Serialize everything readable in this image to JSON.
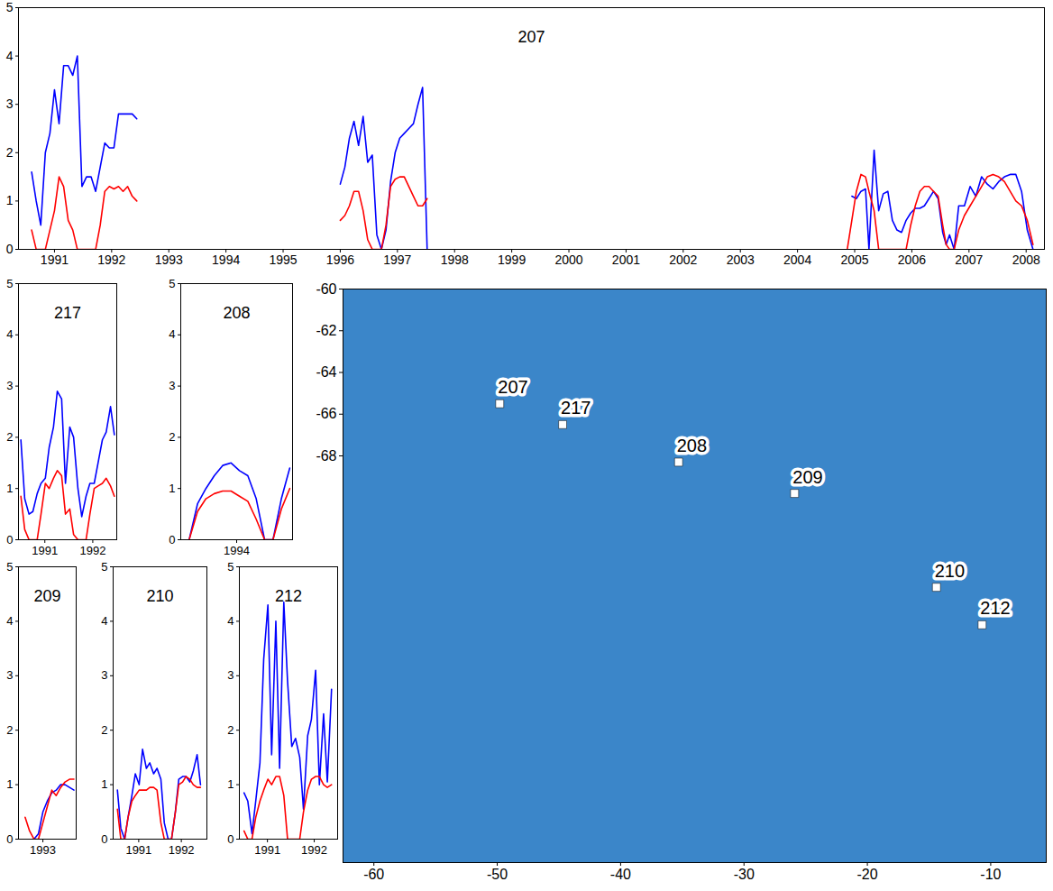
{
  "chart_data": [
    {
      "type": "line",
      "title": "207",
      "x": [
        1990.6,
        1990.68,
        1990.76,
        1990.84,
        1990.92,
        1991.0,
        1991.08,
        1991.16,
        1991.24,
        1991.32,
        1991.4,
        1991.48,
        1991.56,
        1991.64,
        1991.72,
        1991.8,
        1991.88,
        1991.96,
        1992.04,
        1992.12,
        1992.2,
        1992.28,
        1992.36,
        1992.44,
        1994.0,
        1996.0,
        1996.08,
        1996.16,
        1996.24,
        1996.32,
        1996.4,
        1996.48,
        1996.56,
        1996.64,
        1996.72,
        1996.8,
        1996.88,
        1996.96,
        1997.04,
        1997.12,
        1997.2,
        1997.28,
        1997.36,
        1997.44,
        1997.52,
        2001.0,
        2004.87,
        2004.95,
        2005.03,
        2005.11,
        2005.19,
        2005.25,
        2005.34,
        2005.42,
        2005.5,
        2005.58,
        2005.66,
        2005.74,
        2005.82,
        2005.9,
        2005.98,
        2006.06,
        2006.14,
        2006.22,
        2006.3,
        2006.38,
        2006.46,
        2006.54,
        2006.6,
        2006.66,
        2006.74,
        2006.82,
        2006.92,
        2007.02,
        2007.12,
        2007.22,
        2007.32,
        2007.42,
        2007.52,
        2007.62,
        2007.72,
        2007.82,
        2007.92,
        2008.02,
        2008.12
      ],
      "series": [
        {
          "color": "#0000ff",
          "values": [
            1.6,
            1.0,
            0.5,
            2.0,
            2.4,
            3.3,
            2.6,
            3.8,
            3.8,
            3.6,
            4.0,
            1.3,
            1.5,
            1.5,
            1.2,
            1.7,
            2.2,
            2.1,
            2.1,
            2.8,
            2.8,
            2.8,
            2.8,
            2.7,
            null,
            1.35,
            1.7,
            2.3,
            2.65,
            2.15,
            2.75,
            1.8,
            1.95,
            0.3,
            0.0,
            0.4,
            1.4,
            2.0,
            2.3,
            2.4,
            2.5,
            2.6,
            3.0,
            3.35,
            0.0,
            null,
            null,
            1.1,
            1.05,
            1.2,
            1.25,
            0.0,
            2.05,
            0.8,
            1.15,
            1.2,
            0.6,
            0.4,
            0.35,
            0.6,
            0.75,
            0.85,
            0.85,
            0.9,
            1.05,
            1.2,
            1.05,
            0.35,
            0.1,
            0.3,
            0.0,
            0.9,
            0.9,
            1.3,
            1.1,
            1.5,
            1.35,
            1.25,
            1.4,
            1.5,
            1.55,
            1.55,
            1.2,
            0.4,
            0.0
          ]
        },
        {
          "color": "#ff0000",
          "values": [
            0.4,
            0.0,
            0.0,
            0.0,
            0.4,
            0.8,
            1.5,
            1.3,
            0.6,
            0.4,
            0.0,
            0.0,
            0.0,
            0.0,
            0.0,
            0.5,
            1.2,
            1.3,
            1.25,
            1.3,
            1.2,
            1.3,
            1.1,
            1.0,
            null,
            0.6,
            0.7,
            0.9,
            1.2,
            1.2,
            0.8,
            0.2,
            0.0,
            0.0,
            0.0,
            0.5,
            1.3,
            1.45,
            1.5,
            1.5,
            1.3,
            1.1,
            0.9,
            0.9,
            1.05,
            null,
            0.0,
            0.6,
            1.2,
            1.55,
            1.5,
            1.2,
            0.8,
            0.0,
            0.0,
            0.0,
            0.0,
            0.0,
            0.0,
            0.0,
            0.5,
            0.9,
            1.2,
            1.3,
            1.3,
            1.2,
            1.1,
            0.5,
            0.1,
            0.0,
            0.0,
            0.4,
            0.7,
            0.9,
            1.1,
            1.3,
            1.5,
            1.55,
            1.5,
            1.4,
            1.2,
            1.0,
            0.9,
            0.6,
            0.1
          ]
        }
      ],
      "xlim": [
        1990.37,
        2008.32
      ],
      "xticks": [
        1991,
        1992,
        1993,
        1994,
        1995,
        1996,
        1997,
        1998,
        1999,
        2000,
        2001,
        2002,
        2003,
        2004,
        2005,
        2006,
        2007,
        2008
      ],
      "ylim": [
        0,
        5
      ],
      "yticks": [
        0,
        1,
        2,
        3,
        4,
        5
      ]
    },
    {
      "type": "line",
      "title": "217",
      "x": [
        1990.5,
        1990.58,
        1990.67,
        1990.75,
        1990.84,
        1990.92,
        1991.01,
        1991.09,
        1991.18,
        1991.26,
        1991.35,
        1991.43,
        1991.52,
        1991.6,
        1991.69,
        1991.77,
        1991.86,
        1991.94,
        1992.03,
        1992.11,
        1992.2,
        1992.28,
        1992.37,
        1992.45
      ],
      "series": [
        {
          "color": "#0000ff",
          "values": [
            1.95,
            0.8,
            0.5,
            0.55,
            0.9,
            1.1,
            1.2,
            1.8,
            2.2,
            2.9,
            2.75,
            1.1,
            2.2,
            2.0,
            1.0,
            0.45,
            0.85,
            1.1,
            1.1,
            1.5,
            1.95,
            2.1,
            2.6,
            2.05
          ]
        },
        {
          "color": "#ff0000",
          "values": [
            0.85,
            0.2,
            0.0,
            0.0,
            0.0,
            0.5,
            1.1,
            1.0,
            1.2,
            1.35,
            1.25,
            0.5,
            0.6,
            0.1,
            0.0,
            0.0,
            0.0,
            0.5,
            1.0,
            1.05,
            1.1,
            1.2,
            1.05,
            0.85
          ]
        }
      ],
      "xlim": [
        1990.45,
        1992.5
      ],
      "xticks": [
        1991,
        1992
      ],
      "ylim": [
        0,
        5
      ],
      "yticks": [
        0,
        1,
        2,
        3,
        4,
        5
      ]
    },
    {
      "type": "line",
      "title": "208",
      "x": [
        1993.15,
        1993.3,
        1993.45,
        1993.6,
        1993.75,
        1993.9,
        1994.05,
        1994.2,
        1994.35,
        1994.5,
        1994.65,
        1994.8,
        1994.95
      ],
      "series": [
        {
          "color": "#0000ff",
          "values": [
            0.0,
            0.7,
            1.0,
            1.25,
            1.45,
            1.5,
            1.35,
            1.25,
            0.8,
            0.0,
            0.0,
            0.8,
            1.4
          ]
        },
        {
          "color": "#ff0000",
          "values": [
            0.0,
            0.55,
            0.8,
            0.9,
            0.95,
            0.95,
            0.85,
            0.75,
            0.4,
            0.0,
            0.0,
            0.6,
            1.0
          ]
        }
      ],
      "xlim": [
        1993.0,
        1995.0
      ],
      "xticks": [
        1994
      ],
      "ylim": [
        0,
        5
      ],
      "yticks": [
        0,
        1,
        2,
        3,
        4,
        5
      ]
    },
    {
      "type": "line",
      "title": "209",
      "x": [
        1992.6,
        1992.7,
        1992.8,
        1992.9,
        1993.0,
        1993.1,
        1993.2,
        1993.3,
        1993.4,
        1993.5,
        1993.6,
        1993.7
      ],
      "series": [
        {
          "color": "#0000ff",
          "values": [
            null,
            null,
            0.0,
            0.1,
            0.5,
            0.7,
            0.85,
            0.9,
            1.0,
            1.0,
            0.95,
            0.9
          ]
        },
        {
          "color": "#ff0000",
          "values": [
            0.4,
            0.15,
            0.0,
            0.0,
            0.3,
            0.6,
            0.9,
            0.8,
            0.95,
            1.05,
            1.1,
            1.1
          ]
        }
      ],
      "xlim": [
        1992.45,
        1993.75
      ],
      "xticks": [
        1993
      ],
      "ylim": [
        0,
        5
      ],
      "yticks": [
        0,
        1,
        2,
        3,
        4,
        5
      ]
    },
    {
      "type": "line",
      "title": "210",
      "x": [
        1990.5,
        1990.58,
        1990.67,
        1990.75,
        1990.84,
        1990.92,
        1991.01,
        1991.09,
        1991.18,
        1991.26,
        1991.35,
        1991.43,
        1991.52,
        1991.6,
        1991.69,
        1991.77,
        1991.86,
        1991.94,
        1992.03,
        1992.11,
        1992.2,
        1992.28,
        1992.37,
        1992.45
      ],
      "series": [
        {
          "color": "#0000ff",
          "values": [
            0.9,
            0.2,
            0.0,
            0.4,
            0.8,
            1.2,
            1.0,
            1.65,
            1.3,
            1.4,
            1.2,
            1.3,
            1.1,
            0.3,
            0.0,
            0.0,
            0.5,
            1.1,
            1.15,
            1.15,
            1.05,
            1.25,
            1.55,
            1.0
          ]
        },
        {
          "color": "#ff0000",
          "values": [
            0.55,
            0.0,
            0.0,
            0.4,
            0.7,
            0.8,
            0.9,
            0.9,
            0.9,
            0.95,
            0.95,
            0.9,
            0.3,
            0.0,
            0.0,
            0.0,
            0.5,
            1.0,
            1.05,
            1.15,
            1.1,
            1.0,
            0.95,
            0.95
          ]
        }
      ],
      "xlim": [
        1990.4,
        1992.6
      ],
      "xticks": [
        1991,
        1992
      ],
      "ylim": [
        0,
        5
      ],
      "yticks": [
        0,
        1,
        2,
        3,
        4,
        5
      ]
    },
    {
      "type": "line",
      "title": "212",
      "x": [
        1990.5,
        1990.58,
        1990.67,
        1990.75,
        1990.84,
        1990.92,
        1991.01,
        1991.09,
        1991.18,
        1991.26,
        1991.35,
        1991.43,
        1991.52,
        1991.6,
        1991.69,
        1991.77,
        1991.86,
        1991.94,
        1992.03,
        1992.11,
        1992.2,
        1992.28,
        1992.37
      ],
      "series": [
        {
          "color": "#0000ff",
          "values": [
            0.85,
            0.7,
            0.1,
            0.7,
            1.4,
            3.3,
            4.3,
            1.55,
            4.0,
            1.3,
            4.35,
            2.9,
            1.7,
            1.85,
            1.5,
            0.55,
            1.9,
            2.2,
            3.1,
            1.0,
            2.3,
            1.05,
            2.75
          ]
        },
        {
          "color": "#ff0000",
          "values": [
            0.15,
            0.0,
            0.0,
            0.4,
            0.7,
            0.9,
            1.1,
            1.0,
            1.15,
            1.15,
            0.8,
            0.0,
            0.0,
            0.0,
            0.0,
            0.5,
            0.9,
            1.1,
            1.15,
            1.15,
            1.0,
            0.95,
            1.0
          ]
        }
      ],
      "xlim": [
        1990.4,
        1992.5
      ],
      "xticks": [
        1991,
        1992
      ],
      "ylim": [
        0,
        5
      ],
      "yticks": [
        0,
        1,
        2,
        3,
        4,
        5
      ]
    },
    {
      "type": "scatter",
      "categories": [
        "207",
        "217",
        "208",
        "209",
        "210",
        "212"
      ],
      "x": [
        -49.8,
        -44.7,
        -35.3,
        -25.9,
        -14.4,
        -10.7
      ],
      "values": [
        -65.5,
        -66.5,
        -68.3,
        -69.8,
        -74.3,
        -76.1
      ],
      "color": "#ffffff",
      "marker": "square",
      "xlim": [
        -62.5,
        -5.5
      ],
      "xticks": [
        -60,
        -50,
        -40,
        -30,
        -20,
        -10
      ],
      "ylim": [
        -87.5,
        -60
      ],
      "yticks": [
        -60,
        -62,
        -64,
        -66,
        -68
      ]
    }
  ]
}
